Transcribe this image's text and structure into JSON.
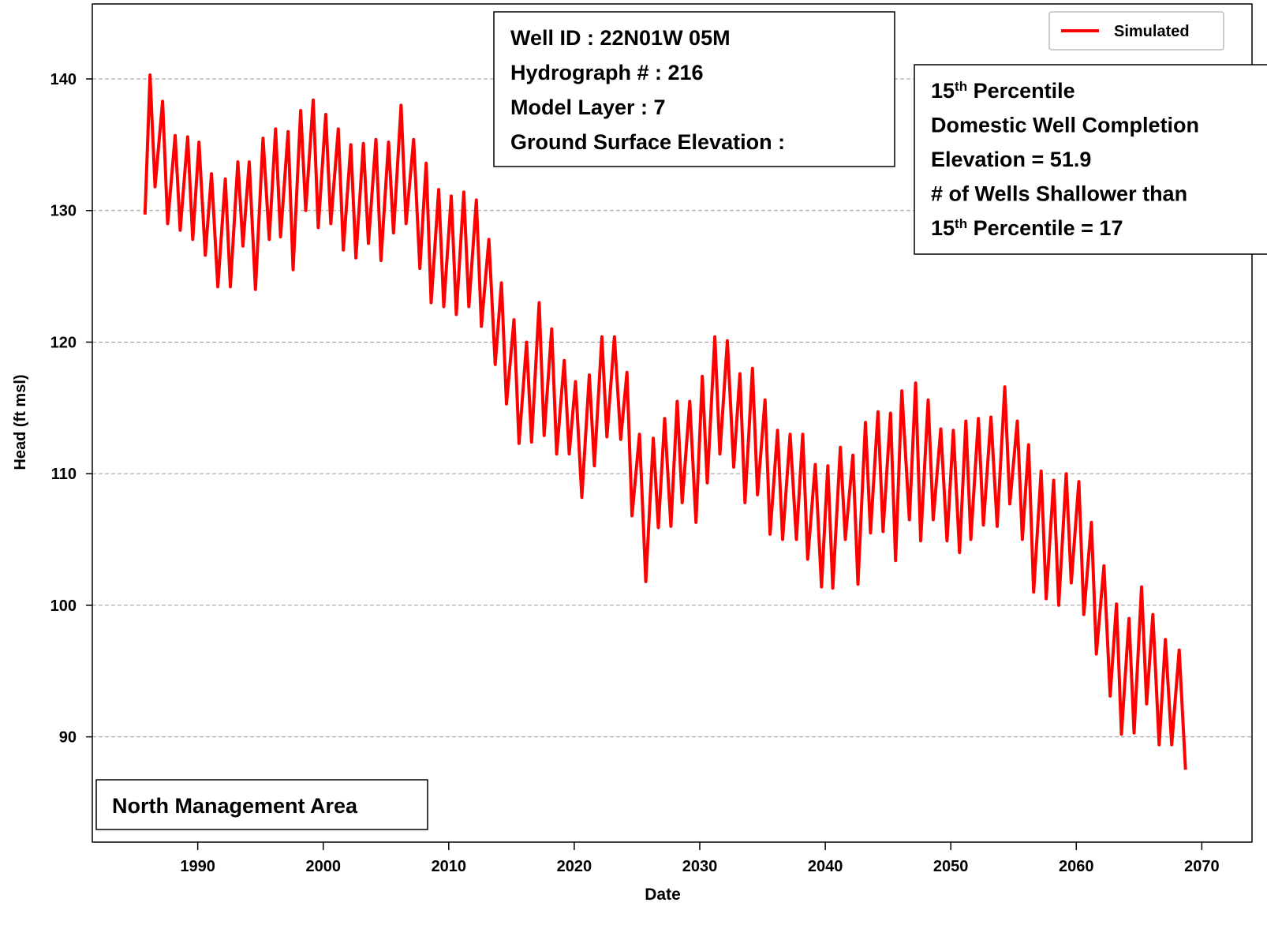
{
  "chart_data": {
    "type": "line",
    "xlabel": "Date",
    "ylabel": "Head (ft msl)",
    "xlim": [
      1981.6,
      2074.0
    ],
    "ylim": [
      82.0,
      145.7
    ],
    "xticks": [
      1990,
      2000,
      2010,
      2020,
      2030,
      2040,
      2050,
      2060,
      2070
    ],
    "yticks": [
      90,
      100,
      110,
      120,
      130,
      140
    ],
    "grid": true,
    "legend": "upper right",
    "x": [
      1985.8,
      1986.2,
      1986.6,
      1987.2,
      1987.6,
      1988.2,
      1988.6,
      1989.2,
      1989.6,
      1990.1,
      1990.6,
      1991.1,
      1991.6,
      1992.2,
      1992.6,
      1993.2,
      1993.6,
      1994.1,
      1994.6,
      1995.2,
      1995.7,
      1996.2,
      1996.6,
      1997.2,
      1997.6,
      1998.2,
      1998.6,
      1999.2,
      1999.6,
      2000.2,
      2000.6,
      2001.2,
      2001.6,
      2002.2,
      2002.6,
      2003.2,
      2003.6,
      2004.2,
      2004.6,
      2005.2,
      2005.6,
      2006.2,
      2006.6,
      2007.2,
      2007.7,
      2008.2,
      2008.6,
      2009.2,
      2009.6,
      2010.2,
      2010.6,
      2011.2,
      2011.6,
      2012.2,
      2012.6,
      2013.2,
      2013.7,
      2014.2,
      2014.6,
      2015.2,
      2015.6,
      2016.2,
      2016.6,
      2017.2,
      2017.6,
      2018.2,
      2018.6,
      2019.2,
      2019.6,
      2020.1,
      2020.6,
      2021.2,
      2021.6,
      2022.2,
      2022.6,
      2023.2,
      2023.7,
      2024.2,
      2024.6,
      2025.2,
      2025.7,
      2026.3,
      2026.7,
      2027.2,
      2027.7,
      2028.2,
      2028.6,
      2029.2,
      2029.7,
      2030.2,
      2030.6,
      2031.2,
      2031.6,
      2032.2,
      2032.7,
      2033.2,
      2033.6,
      2034.2,
      2034.6,
      2035.2,
      2035.6,
      2036.2,
      2036.6,
      2037.2,
      2037.7,
      2038.2,
      2038.6,
      2039.2,
      2039.7,
      2040.2,
      2040.6,
      2041.2,
      2041.6,
      2042.2,
      2042.6,
      2043.2,
      2043.6,
      2044.2,
      2044.6,
      2045.2,
      2045.6,
      2046.1,
      2046.7,
      2047.2,
      2047.6,
      2048.2,
      2048.6,
      2049.2,
      2049.7,
      2050.2,
      2050.7,
      2051.2,
      2051.6,
      2052.2,
      2052.6,
      2053.2,
      2053.7,
      2054.3,
      2054.7,
      2055.3,
      2055.7,
      2056.2,
      2056.6,
      2057.2,
      2057.6,
      2058.2,
      2058.6,
      2059.2,
      2059.6,
      2060.2,
      2060.6,
      2061.2,
      2061.6,
      2062.2,
      2062.7,
      2063.2,
      2063.6,
      2064.2,
      2064.6,
      2065.2,
      2065.6,
      2066.1,
      2066.6,
      2067.1,
      2067.6,
      2068.2,
      2068.7
    ],
    "series": [
      {
        "name": "Simulated",
        "color": "#ff0000",
        "values": [
          129.7,
          140.3,
          131.8,
          138.3,
          129,
          135.7,
          128.5,
          135.6,
          127.8,
          135.2,
          126.6,
          132.8,
          124.2,
          132.4,
          124.2,
          133.7,
          127.3,
          133.7,
          124,
          135.5,
          127.8,
          136.2,
          128,
          136,
          125.5,
          137.6,
          130,
          138.4,
          128.7,
          137.3,
          129,
          136.2,
          127,
          135,
          126.4,
          135.1,
          127.5,
          135.4,
          126.2,
          135.2,
          128.3,
          138,
          129,
          135.4,
          125.6,
          133.6,
          123,
          131.6,
          122.7,
          131.1,
          122.1,
          131.4,
          122.7,
          130.8,
          121.2,
          127.8,
          118.3,
          124.5,
          115.3,
          121.7,
          112.3,
          120,
          112.4,
          123,
          112.9,
          121,
          111.5,
          118.6,
          111.5,
          117,
          108.2,
          117.5,
          110.6,
          120.4,
          112.8,
          120.4,
          112.6,
          117.7,
          106.8,
          113,
          101.8,
          112.7,
          105.9,
          114.2,
          106,
          115.5,
          107.8,
          115.5,
          106.3,
          117.4,
          109.3,
          120.4,
          111.5,
          120.1,
          110.5,
          117.6,
          107.8,
          118,
          108.4,
          115.6,
          105.4,
          113.3,
          105,
          113,
          105,
          113,
          103.5,
          110.7,
          101.4,
          110.6,
          101.3,
          112,
          105,
          111.4,
          101.6,
          113.9,
          105.5,
          114.7,
          105.6,
          114.6,
          103.4,
          116.3,
          106.5,
          116.9,
          104.9,
          115.6,
          106.5,
          113.4,
          104.9,
          113.3,
          104,
          114,
          105,
          114.2,
          106.1,
          114.3,
          106,
          116.6,
          107.7,
          114,
          105,
          112.2,
          101,
          110.2,
          100.5,
          109.5,
          100,
          110,
          101.7,
          109.4,
          99.3,
          106.3,
          96.3,
          103,
          93.1,
          100.1,
          90.2,
          99,
          90.3,
          101.4,
          92.5,
          99.3,
          89.4,
          97.4,
          89.4,
          96.6,
          87.5
        ]
      }
    ],
    "info_box": [
      "Well ID : 22N01W 05M",
      "Hydrograph # : 216",
      "Model Layer : 7",
      "Ground Surface Elevation :"
    ],
    "percentile_box": [
      [
        "15",
        "th",
        " Percentile"
      ],
      [
        "Domestic Well Completion"
      ],
      [
        "Elevation =  51.9"
      ],
      [
        "# of Wells Shallower than"
      ],
      [
        "15",
        "th",
        " Percentile = 17"
      ]
    ],
    "area_label": "North Management Area"
  }
}
